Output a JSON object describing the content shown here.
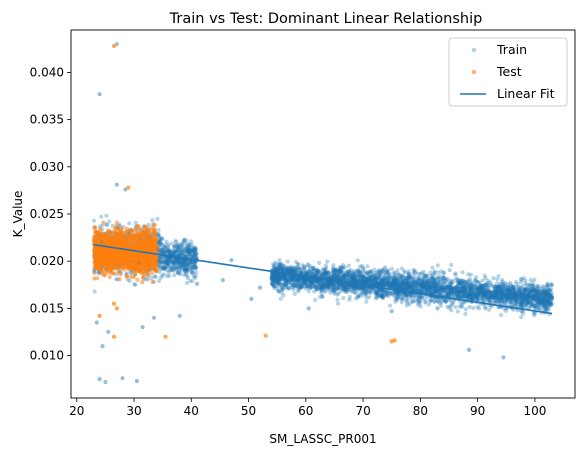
{
  "chart_data": {
    "type": "scatter",
    "title": "Train vs Test: Dominant Linear Relationship",
    "xlabel": "SM_LASSC_PR001",
    "ylabel": "K_Value",
    "xlim": [
      19.0,
      107.0
    ],
    "ylim": [
      0.0055,
      0.0445
    ],
    "x_ticks": [
      20,
      30,
      40,
      50,
      60,
      70,
      80,
      90,
      100
    ],
    "y_ticks": [
      0.01,
      0.015,
      0.02,
      0.025,
      0.03,
      0.035,
      0.04
    ],
    "y_tick_labels": [
      "0.010",
      "0.015",
      "0.020",
      "0.025",
      "0.030",
      "0.035",
      "0.040"
    ],
    "grid": false,
    "legend_position": "top-right",
    "colors": {
      "train": "#1f77b4",
      "test": "#ff7f0e",
      "fit": "#1f77b4"
    },
    "series": [
      {
        "name": "Train",
        "kind": "points",
        "bands": [
          {
            "x": [
              23,
              35
            ],
            "y_center": 0.021,
            "y_spread": 0.0022,
            "note": "dense"
          },
          {
            "x": [
              35,
              41
            ],
            "y_center": 0.0202,
            "y_spread": 0.0016,
            "note": "dense"
          },
          {
            "x": [
              54,
              103
            ],
            "y_start": 0.0185,
            "y_end": 0.016,
            "y_spread": 0.0013,
            "note": "dense"
          }
        ],
        "outliers": [
          [
            24.0,
            0.0377
          ],
          [
            27.0,
            0.0281
          ],
          [
            28.5,
            0.0276
          ],
          [
            24.5,
            0.011
          ],
          [
            24.0,
            0.0075
          ],
          [
            25.0,
            0.0072
          ],
          [
            28.0,
            0.0076
          ],
          [
            30.5,
            0.0073
          ],
          [
            27.0,
            0.043
          ],
          [
            23.5,
            0.0135
          ],
          [
            25.5,
            0.0125
          ],
          [
            31.5,
            0.013
          ],
          [
            33.5,
            0.014
          ],
          [
            38.0,
            0.0142
          ],
          [
            41.0,
            0.0176
          ],
          [
            45.5,
            0.018
          ],
          [
            47.0,
            0.0201
          ],
          [
            50.5,
            0.016
          ],
          [
            52.0,
            0.0172
          ],
          [
            88.5,
            0.0106
          ],
          [
            94.5,
            0.0098
          ],
          [
            60.5,
            0.015
          ],
          [
            75.0,
            0.0147
          ],
          [
            83.0,
            0.015
          ],
          [
            99.5,
            0.0155
          ]
        ]
      },
      {
        "name": "Test",
        "kind": "points",
        "bands": [
          {
            "x": [
              23,
              34
            ],
            "y_center": 0.021,
            "y_spread": 0.002,
            "note": "dense"
          }
        ],
        "outliers": [
          [
            26.5,
            0.0428
          ],
          [
            29.0,
            0.0278
          ],
          [
            35.5,
            0.012
          ],
          [
            53.0,
            0.0121
          ],
          [
            75.0,
            0.0115
          ],
          [
            75.5,
            0.0116
          ],
          [
            26.5,
            0.012
          ],
          [
            24.0,
            0.0142
          ],
          [
            27.0,
            0.015
          ],
          [
            26.5,
            0.0155
          ]
        ]
      },
      {
        "name": "Linear Fit",
        "kind": "line",
        "x": [
          23,
          103
        ],
        "y": [
          0.02175,
          0.01445
        ]
      }
    ]
  }
}
